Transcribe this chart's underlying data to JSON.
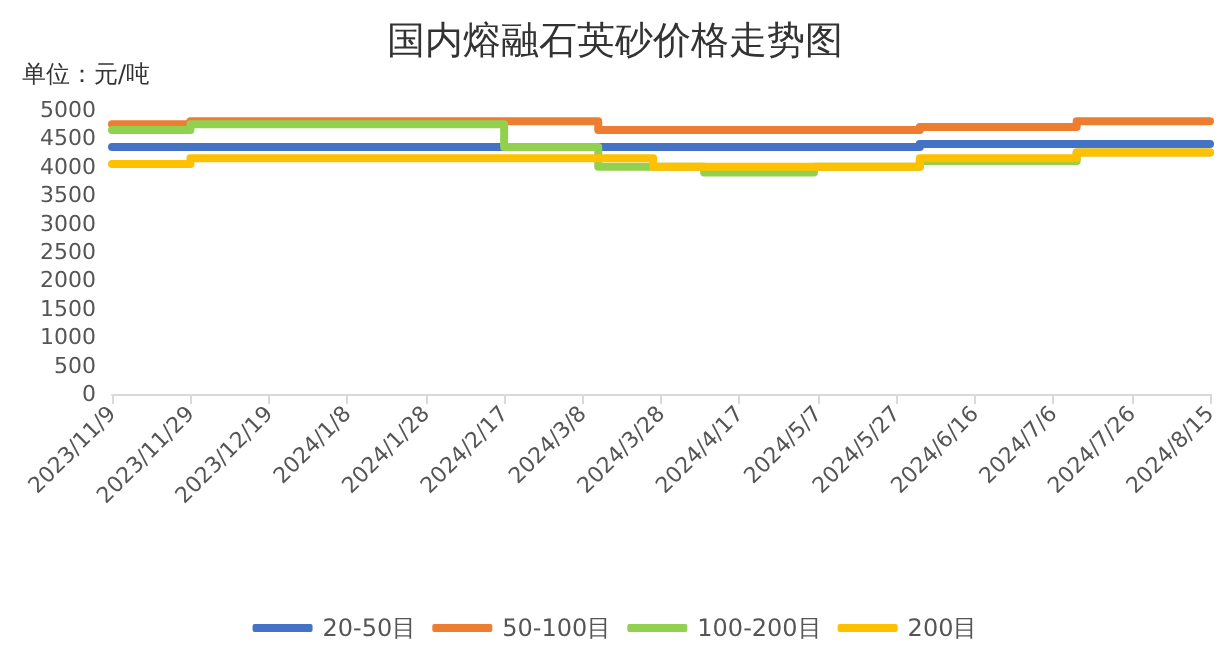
{
  "chart_data": {
    "type": "step",
    "title": "国内熔融石英砂价格走势图",
    "ylabel": "单位：元/吨",
    "xlim": [
      "2023-11-09",
      "2024-08-15"
    ],
    "xticks": [
      {
        "value": "2023-11-09",
        "label": "2023/11/9"
      },
      {
        "value": "2023-11-29",
        "label": "2023/11/29"
      },
      {
        "value": "2023-12-19",
        "label": "2023/12/19"
      },
      {
        "value": "2024-01-08",
        "label": "2024/1/8"
      },
      {
        "value": "2024-01-28",
        "label": "2024/1/28"
      },
      {
        "value": "2024-02-17",
        "label": "2024/2/17"
      },
      {
        "value": "2024-03-08",
        "label": "2024/3/8"
      },
      {
        "value": "2024-03-28",
        "label": "2024/3/28"
      },
      {
        "value": "2024-04-17",
        "label": "2024/4/17"
      },
      {
        "value": "2024-05-07",
        "label": "2024/5/7"
      },
      {
        "value": "2024-05-27",
        "label": "2024/5/27"
      },
      {
        "value": "2024-06-16",
        "label": "2024/6/16"
      },
      {
        "value": "2024-07-06",
        "label": "2024/7/6"
      },
      {
        "value": "2024-07-26",
        "label": "2024/7/26"
      },
      {
        "value": "2024-08-15",
        "label": "2024/8/15"
      }
    ],
    "ylim": [
      0,
      5000
    ],
    "yticks": [
      0,
      500,
      1000,
      1500,
      2000,
      2500,
      3000,
      3500,
      4000,
      4500,
      5000
    ],
    "grid": false,
    "legend": "bottom",
    "marker": "none",
    "line_style": "solid",
    "series": [
      {
        "name": "20-50目",
        "color": "#4472c4",
        "x": [
          "2023-11-09",
          "2024-06-02",
          "2024-08-15"
        ],
        "values": [
          4350,
          4400,
          4400
        ]
      },
      {
        "name": "50-100目",
        "color": "#ed7d31",
        "x": [
          "2023-11-09",
          "2023-11-29",
          "2024-03-12",
          "2024-06-02",
          "2024-07-12",
          "2024-08-15"
        ],
        "values": [
          4750,
          4800,
          4650,
          4700,
          4800,
          4800
        ]
      },
      {
        "name": "100-200目",
        "color": "#92d050",
        "x": [
          "2023-11-09",
          "2023-11-29",
          "2024-02-17",
          "2024-03-12",
          "2024-04-08",
          "2024-05-06",
          "2024-06-02",
          "2024-07-12",
          "2024-08-15"
        ],
        "values": [
          4650,
          4750,
          4350,
          4000,
          3900,
          4000,
          4100,
          4250,
          4250
        ]
      },
      {
        "name": "200目",
        "color": "#ffc000",
        "x": [
          "2023-11-09",
          "2023-11-29",
          "2024-03-26",
          "2024-06-02",
          "2024-07-12",
          "2024-08-15"
        ],
        "values": [
          4050,
          4150,
          4000,
          4150,
          4250,
          4250
        ]
      }
    ]
  }
}
